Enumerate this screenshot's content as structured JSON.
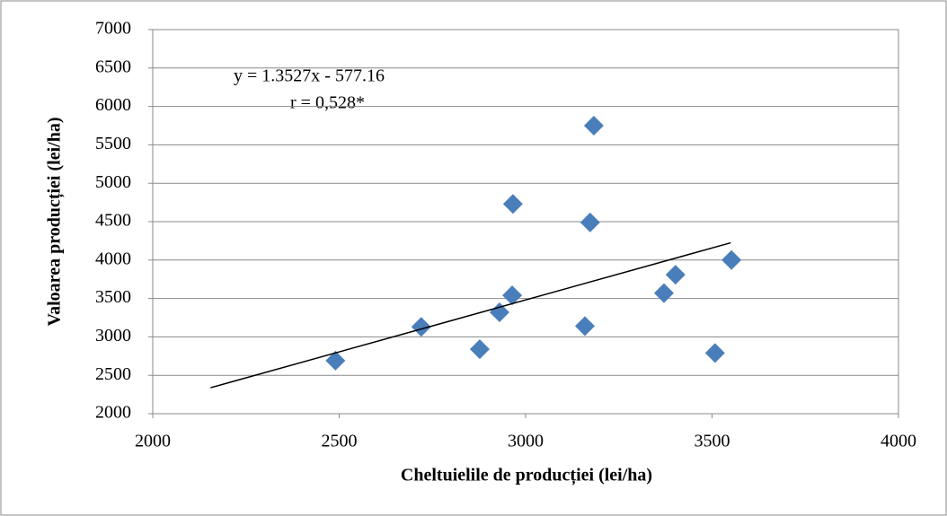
{
  "chart_data": {
    "type": "scatter",
    "x_label": "Cheltuielile de producției (lei/ha)",
    "y_label": "Valoarea producției (lei/ha)",
    "annotations": [
      "y = 1.3527x - 577.16",
      "r = 0,528*"
    ],
    "series": [
      {
        "color": "#4a7ebb",
        "x": [
          2490,
          2720,
          2877,
          2930,
          2964,
          2966,
          3159,
          3173,
          3183,
          3371,
          3402,
          3508,
          3552
        ],
        "values": [
          2690,
          3130,
          2840,
          3320,
          3540,
          4730,
          3140,
          4490,
          5750,
          3570,
          3810,
          2790,
          4000
        ]
      }
    ],
    "trendline": {
      "x": [
        2155,
        3550
      ],
      "y": [
        2338,
        4225
      ],
      "color": "#000000"
    },
    "xlim": [
      2000,
      4000
    ],
    "xticks": [
      2000,
      2500,
      3000,
      3500,
      4000
    ],
    "ylim": [
      2000,
      7000
    ],
    "yticks": [
      2000,
      2500,
      3000,
      3500,
      4000,
      4500,
      5000,
      5500,
      6000,
      6500,
      7000
    ],
    "grid": true
  }
}
